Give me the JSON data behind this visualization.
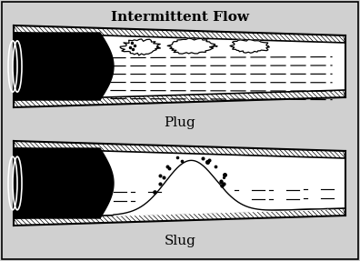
{
  "title": "Intermittent Flow",
  "label_plug": "Plug",
  "label_slug": "Slug",
  "bg_color": "#d0d0d0",
  "title_fontsize": 11,
  "label_fontsize": 11,
  "fig_width": 3.96,
  "fig_height": 2.87,
  "dpi": 100
}
